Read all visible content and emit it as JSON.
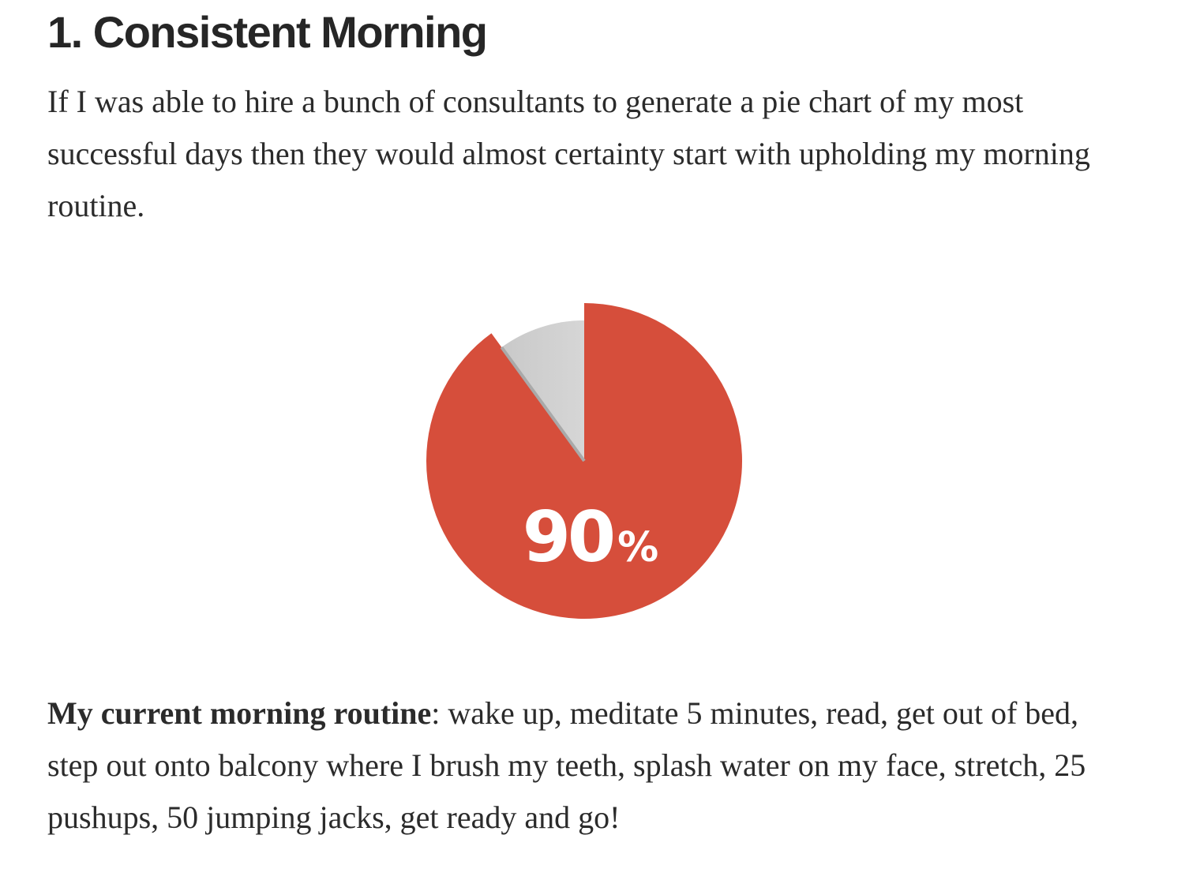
{
  "article": {
    "heading": "1. Consistent Morning",
    "intro": "If I was able to hire a bunch of consultants to generate a pie chart of my most successful days then they would almost certainty start with upholding my morning routine.",
    "routine_label": "My current morning routine",
    "routine_text": ": wake up, meditate 5 minutes, read, get out of bed, step out onto balcony where I brush my teeth, splash water on my face, stretch, 25 pushups, 50 jumping jacks, get ready and go!"
  },
  "chart_data": {
    "type": "pie",
    "values": [
      90,
      10
    ],
    "colors": [
      "#d64e3b",
      "#cfcfcf"
    ],
    "data_label": "90",
    "data_label_suffix": "%",
    "highlight_slice": 1,
    "title": "",
    "legend": "none"
  }
}
